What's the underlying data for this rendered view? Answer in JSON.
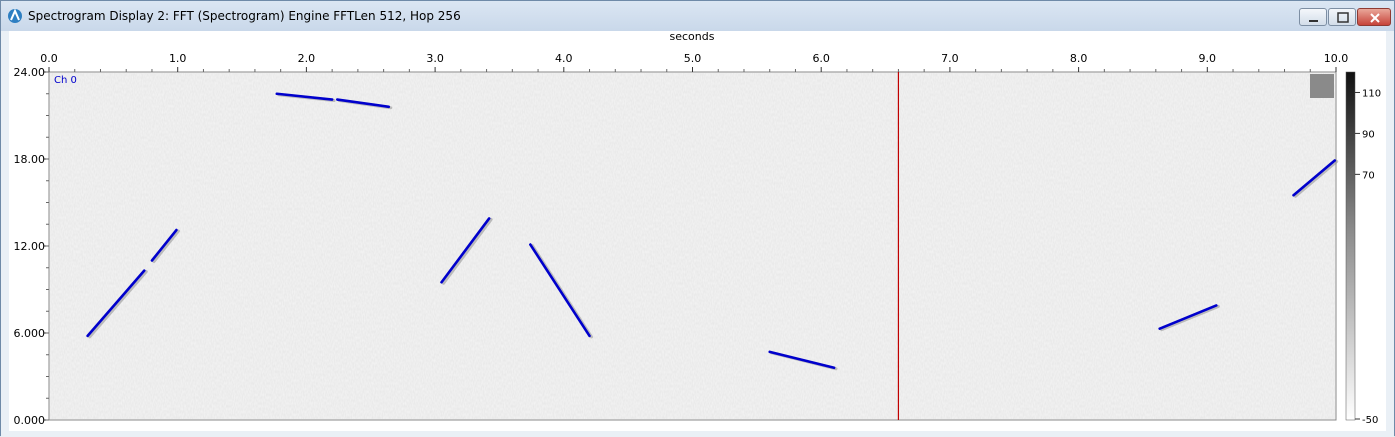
{
  "window": {
    "title": "Spectrogram Display 2: FFT (Spectrogram) Engine FFTLen 512, Hop 256",
    "buttons": [
      "minimize",
      "maximize",
      "close"
    ]
  },
  "plot": {
    "channel_label": "Ch 0",
    "cursor_color": "#c00000",
    "trace_color": "#0000cc"
  },
  "chart_data": {
    "type": "heatmap",
    "xlabel": "seconds",
    "xlim": [
      0,
      10
    ],
    "ylim": [
      0,
      24
    ],
    "x_ticks": [
      "0.0",
      "1.0",
      "2.0",
      "3.0",
      "4.0",
      "5.0",
      "6.0",
      "7.0",
      "8.0",
      "9.0",
      "10.0"
    ],
    "y_ticks": [
      "0.000",
      "6.000",
      "12.00",
      "18.00",
      "24.00"
    ],
    "colorbar_ticks": [
      "-50",
      "70",
      "90",
      "110"
    ],
    "cursor_x": 6.6,
    "segments": [
      {
        "x1": 0.3,
        "y1": 5.8,
        "x2": 0.74,
        "y2": 10.3
      },
      {
        "x1": 0.8,
        "y1": 11.0,
        "x2": 0.99,
        "y2": 13.1
      },
      {
        "x1": 1.77,
        "y1": 22.5,
        "x2": 2.2,
        "y2": 22.1
      },
      {
        "x1": 2.24,
        "y1": 22.1,
        "x2": 2.64,
        "y2": 21.6
      },
      {
        "x1": 3.05,
        "y1": 9.5,
        "x2": 3.42,
        "y2": 13.9
      },
      {
        "x1": 3.74,
        "y1": 12.1,
        "x2": 4.2,
        "y2": 5.8
      },
      {
        "x1": 5.6,
        "y1": 4.7,
        "x2": 6.1,
        "y2": 3.6
      },
      {
        "x1": 8.63,
        "y1": 6.3,
        "x2": 9.07,
        "y2": 7.9
      },
      {
        "x1": 9.67,
        "y1": 15.5,
        "x2": 9.99,
        "y2": 17.9
      }
    ]
  }
}
